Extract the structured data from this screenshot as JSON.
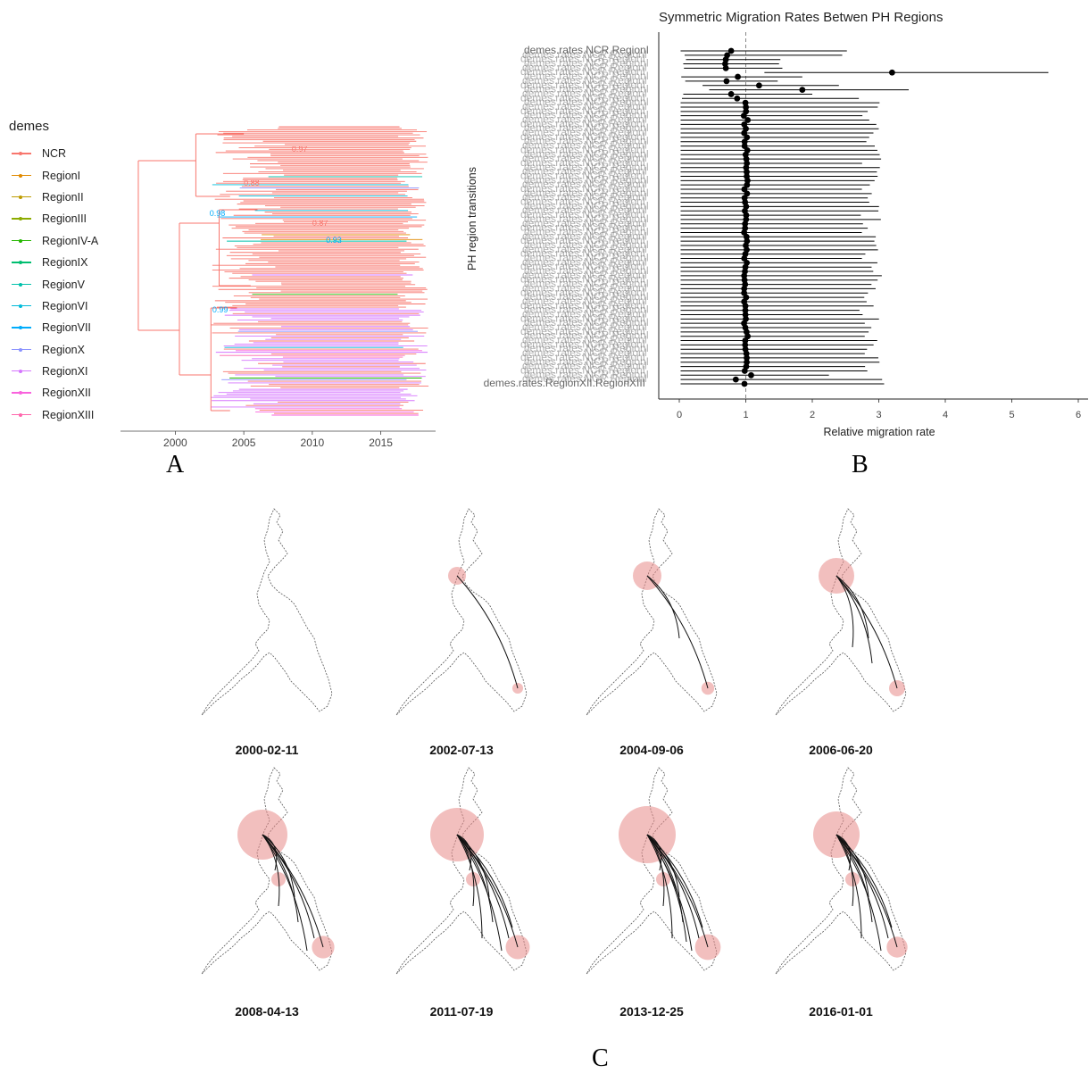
{
  "panel_letters": {
    "a": "A",
    "b": "B",
    "c": "C"
  },
  "legend": {
    "title": "demes",
    "items": [
      {
        "label": "NCR",
        "color": "#f8766d"
      },
      {
        "label": "RegionI",
        "color": "#e18a00"
      },
      {
        "label": "RegionII",
        "color": "#be9c00"
      },
      {
        "label": "RegionIII",
        "color": "#8cab00"
      },
      {
        "label": "RegionIV-A",
        "color": "#24b700"
      },
      {
        "label": "RegionIX",
        "color": "#00be70"
      },
      {
        "label": "RegionV",
        "color": "#00c1ab"
      },
      {
        "label": "RegionVI",
        "color": "#00bbda"
      },
      {
        "label": "RegionVII",
        "color": "#00acfc"
      },
      {
        "label": "RegionX",
        "color": "#8b93ff"
      },
      {
        "label": "RegionXI",
        "color": "#d575fe"
      },
      {
        "label": "RegionXII",
        "color": "#f962dd"
      },
      {
        "label": "RegionXIII",
        "color": "#ff65ac"
      }
    ]
  },
  "chart_data": [
    {
      "type": "tree",
      "panel": "A",
      "x_ticks": [
        "2000",
        "2005",
        "2010",
        "2015"
      ],
      "x_range": [
        1996,
        2019
      ],
      "node_labels": [
        "0.97",
        "0.98",
        "0.87",
        "0.99",
        "0.88",
        "0.93"
      ],
      "tip_count": 180
    },
    {
      "type": "scatter",
      "panel": "B",
      "title": "Symmetric Migration Rates Betwen PH Regions",
      "xlabel": "Relative migration rate",
      "ylabel": "PH region transitions",
      "x_ticks": [
        "0",
        "1",
        "2",
        "3",
        "4",
        "5",
        "6"
      ],
      "xlim": [
        0,
        6
      ],
      "reference_line": 1,
      "visible_labels": {
        "top": "demes.rates.NCR.RegionI",
        "bottom": "demes.rates.RegionXII.RegionXIII"
      },
      "rows": 78,
      "highlight_points": [
        {
          "mean": 0.78,
          "lo": 0.02,
          "hi": 2.52
        },
        {
          "mean": 0.72,
          "lo": 0.08,
          "hi": 2.45
        },
        {
          "mean": 0.7,
          "lo": 0.1,
          "hi": 1.52
        },
        {
          "mean": 0.69,
          "lo": 0.06,
          "hi": 1.5
        },
        {
          "mean": 0.7,
          "lo": 0.07,
          "hi": 1.55
        },
        {
          "mean": 3.2,
          "lo": 1.28,
          "hi": 5.55
        },
        {
          "mean": 0.88,
          "lo": 0.03,
          "hi": 1.85
        },
        {
          "mean": 0.71,
          "lo": 0.09,
          "hi": 1.48
        },
        {
          "mean": 1.2,
          "lo": 0.35,
          "hi": 2.4
        },
        {
          "mean": 1.85,
          "lo": 0.45,
          "hi": 3.45
        },
        {
          "mean": 0.78,
          "lo": 0.06,
          "hi": 2.0
        },
        {
          "mean": 0.87,
          "lo": 0.04,
          "hi": 2.7
        }
      ],
      "typical_point": {
        "mean": 1.0,
        "lo": 0.02,
        "hi": 3.0
      },
      "tail_points": [
        {
          "mean": 1.08,
          "lo": 0.02,
          "hi": 2.25
        },
        {
          "mean": 0.85,
          "lo": 0.02,
          "hi": 3.05
        },
        {
          "mean": 0.98,
          "lo": 0.02,
          "hi": 3.08
        }
      ]
    },
    {
      "type": "map-series",
      "panel": "C",
      "dates": [
        "2000-02-11",
        "2002-07-13",
        "2004-09-06",
        "2006-06-20",
        "2008-04-13",
        "2011-07-19",
        "2013-12-25",
        "2016-01-01"
      ],
      "hub_circle_radius": [
        0,
        10,
        16,
        20,
        28,
        30,
        32,
        26
      ],
      "link_count": [
        0,
        1,
        2,
        4,
        7,
        9,
        10,
        9
      ]
    }
  ]
}
